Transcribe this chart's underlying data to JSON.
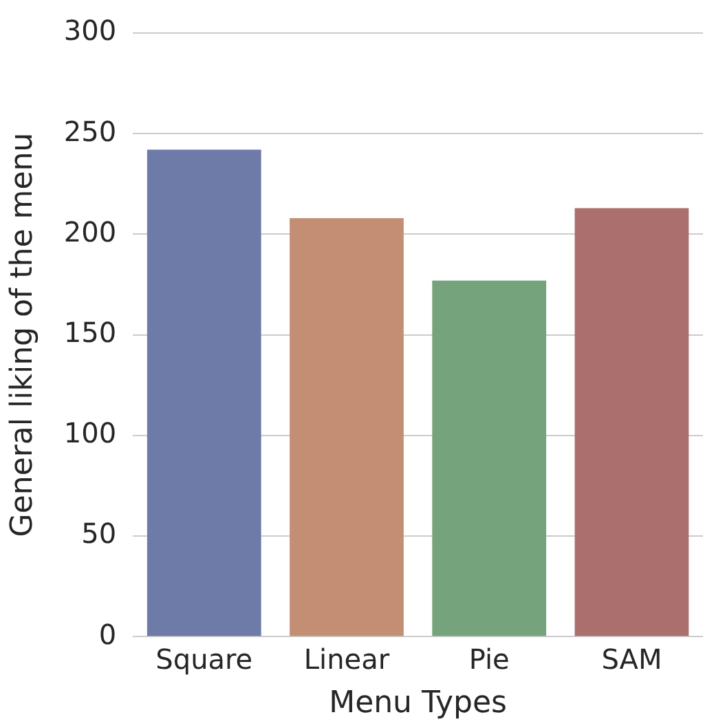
{
  "chart_data": {
    "type": "bar",
    "xlabel": "Menu Types",
    "ylabel": "General liking of the menu",
    "categories": [
      "Square",
      "Linear",
      "Pie",
      "SAM"
    ],
    "values": [
      242,
      208,
      177,
      213
    ],
    "colors": [
      "#6e7aa8",
      "#c48e74",
      "#75a47c",
      "#ab6f6d"
    ],
    "ylim": [
      0,
      300
    ],
    "yticks": [
      0,
      50,
      100,
      150,
      200,
      250,
      300
    ],
    "grid": "y"
  }
}
